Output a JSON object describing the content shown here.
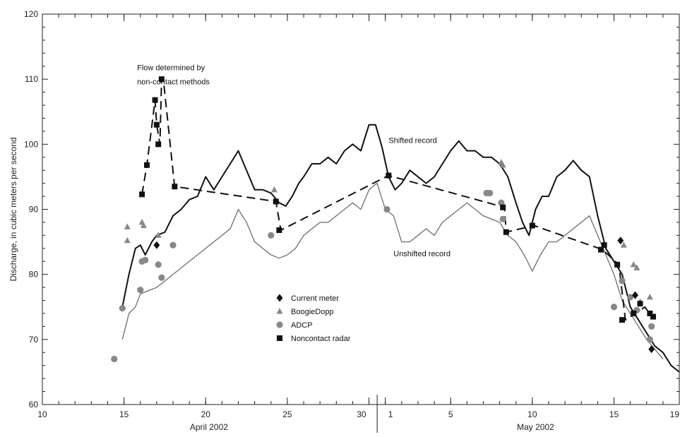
{
  "chart_data": {
    "type": "line",
    "title": "",
    "xlabel": "",
    "ylabel": "Discharge, in cubic meters per second",
    "ylim": [
      60,
      120
    ],
    "y_ticks": [
      60,
      70,
      80,
      90,
      100,
      110,
      120
    ],
    "x_range_days": [
      "2002-04-10",
      "2002-05-19"
    ],
    "x_tick_labels": [
      "10",
      "15",
      "20",
      "25",
      "30",
      "1",
      "5",
      "10",
      "15",
      "19"
    ],
    "x_month_labels": [
      "April 2002",
      "May 2002"
    ],
    "grid": false,
    "legend_position": "center-left",
    "colors": {
      "shifted": "#111111",
      "unshifted": "#777777",
      "current_meter": "#111111",
      "boogiedopp": "#888888",
      "adcp": "#888888",
      "radar": "#111111"
    },
    "annotations": [
      {
        "text": "Flow determined by",
        "x": "2002-04-15.8",
        "y": 111.4
      },
      {
        "text": "non-contact methods",
        "x": "2002-04-15.8",
        "y": 109.2
      },
      {
        "text": "Shifted record",
        "x": "2002-05-01.2",
        "y": 100.2
      },
      {
        "text": "Unshifted record",
        "x": "2002-05-01.5",
        "y": 82.8
      }
    ],
    "series": [
      {
        "name": "Shifted record",
        "style": "solid",
        "x": [
          "2002-04-14.9",
          "2002-04-15.3",
          "2002-04-15.7",
          "2002-04-16.0",
          "2002-04-16.3",
          "2002-04-16.7",
          "2002-04-17.0",
          "2002-04-17.5",
          "2002-04-18.0",
          "2002-04-18.5",
          "2002-04-19.0",
          "2002-04-19.5",
          "2002-04-20.0",
          "2002-04-20.5",
          "2002-04-21.0",
          "2002-04-21.5",
          "2002-04-22.0",
          "2002-04-22.5",
          "2002-04-23.0",
          "2002-04-23.5",
          "2002-04-24.0",
          "2002-04-24.5",
          "2002-04-24.9",
          "2002-04-25.3",
          "2002-04-25.7",
          "2002-04-26.0",
          "2002-04-26.5",
          "2002-04-27.0",
          "2002-04-27.5",
          "2002-04-28.0",
          "2002-04-28.5",
          "2002-04-29.0",
          "2002-04-29.5",
          "2002-04-30.0",
          "2002-04-30.4",
          "2002-04-30.8",
          "2002-05-01.2",
          "2002-05-01.6",
          "2002-05-02.0",
          "2002-05-02.5",
          "2002-05-03.0",
          "2002-05-03.5",
          "2002-05-04.0",
          "2002-05-04.5",
          "2002-05-05.0",
          "2002-05-05.5",
          "2002-05-06.0",
          "2002-05-06.5",
          "2002-05-07.0",
          "2002-05-07.5",
          "2002-05-08.0",
          "2002-05-08.5",
          "2002-05-09.0",
          "2002-05-09.4",
          "2002-05-09.8",
          "2002-05-10.2",
          "2002-05-10.6",
          "2002-05-11.0",
          "2002-05-11.5",
          "2002-05-12.0",
          "2002-05-12.5",
          "2002-05-13.0",
          "2002-05-13.5",
          "2002-05-14.0",
          "2002-05-14.5",
          "2002-05-15.0",
          "2002-05-15.5",
          "2002-05-16.0",
          "2002-05-16.5",
          "2002-05-17.0",
          "2002-05-17.5",
          "2002-05-18.0",
          "2002-05-18.5",
          "2002-05-19.0"
        ],
        "values": [
          75,
          80,
          84,
          84.5,
          83,
          85,
          86,
          86.5,
          89,
          90,
          91.5,
          92,
          95,
          93,
          95,
          97,
          99,
          96,
          93,
          93,
          92.5,
          91,
          90.5,
          92,
          94,
          95,
          97,
          97,
          98,
          97,
          99,
          100,
          99,
          103,
          103,
          99.5,
          95,
          93,
          94,
          96,
          95,
          94,
          95,
          97,
          99,
          100.5,
          99,
          99,
          98,
          98,
          97,
          95,
          91,
          88,
          86,
          90,
          92,
          92,
          95,
          96,
          97.5,
          96,
          95,
          89,
          84,
          82,
          80,
          75,
          73,
          71,
          69,
          68,
          66,
          65
        ]
      },
      {
        "name": "Unshifted record",
        "style": "solid",
        "x": [
          "2002-04-14.9",
          "2002-04-15.3",
          "2002-04-15.7",
          "2002-04-16.0",
          "2002-04-16.5",
          "2002-04-17.0",
          "2002-04-17.5",
          "2002-04-18.0",
          "2002-04-18.5",
          "2002-04-19.0",
          "2002-04-19.5",
          "2002-04-20.0",
          "2002-04-20.5",
          "2002-04-21.0",
          "2002-04-21.5",
          "2002-04-22.0",
          "2002-04-22.5",
          "2002-04-23.0",
          "2002-04-23.5",
          "2002-04-24.0",
          "2002-04-24.5",
          "2002-04-25.0",
          "2002-04-25.5",
          "2002-04-26.0",
          "2002-04-26.5",
          "2002-04-27.0",
          "2002-04-27.5",
          "2002-04-28.0",
          "2002-04-28.5",
          "2002-04-29.0",
          "2002-04-29.5",
          "2002-04-30.0",
          "2002-04-30.5",
          "2002-05-01.0",
          "2002-05-01.5",
          "2002-05-02.0",
          "2002-05-02.5",
          "2002-05-03.0",
          "2002-05-03.5",
          "2002-05-04.0",
          "2002-05-04.5",
          "2002-05-05.0",
          "2002-05-05.5",
          "2002-05-06.0",
          "2002-05-06.5",
          "2002-05-07.0",
          "2002-05-07.5",
          "2002-05-08.0",
          "2002-05-08.5",
          "2002-05-09.0",
          "2002-05-09.5",
          "2002-05-10.0",
          "2002-05-10.5",
          "2002-05-11.0",
          "2002-05-11.5",
          "2002-05-12.0",
          "2002-05-12.5",
          "2002-05-13.0",
          "2002-05-13.5",
          "2002-05-14.0",
          "2002-05-14.5",
          "2002-05-15.0",
          "2002-05-15.5",
          "2002-05-16.0",
          "2002-05-16.5",
          "2002-05-17.0",
          "2002-05-17.5",
          "2002-05-18.0"
        ],
        "values": [
          70,
          74,
          75,
          77,
          77.5,
          78,
          79,
          80,
          81,
          82,
          83,
          84,
          85,
          86,
          87,
          90,
          88,
          85,
          84,
          83,
          82.5,
          83,
          84,
          86,
          87,
          88,
          88,
          89,
          90,
          91,
          90,
          93,
          94,
          90,
          89,
          85,
          85,
          86,
          87,
          86,
          88,
          89,
          90,
          91,
          90,
          89,
          88.5,
          88,
          86,
          85,
          83,
          80.5,
          83,
          85,
          85,
          86,
          87,
          88,
          89,
          86,
          83,
          80,
          76,
          74,
          72,
          70,
          68.5,
          67
        ]
      },
      {
        "name": "",
        "style": "dashed",
        "x": [
          "2002-04-16.1",
          "2002-04-16.4",
          "2002-04-16.9",
          "2002-04-17.0",
          "2002-04-17.2",
          "2002-04-17.3",
          "2002-04-17.4",
          "2002-04-18.1",
          "2002-04-24.3",
          "2002-04-24.6",
          "2002-05-01.2",
          "2002-05-08.3",
          "2002-05-08.4",
          "2002-05-10.1",
          "2002-05-14.3",
          "2002-05-15.3",
          "2002-05-15.7",
          "2002-05-16.3",
          "2002-05-16.9",
          "2002-05-17.3"
        ],
        "values": [
          92.3,
          96.8,
          106.8,
          103,
          100,
          110,
          110.2,
          93.5,
          91.2,
          86.8,
          95.2,
          90.3,
          86.5,
          87.5,
          83.8,
          81.5,
          73,
          74,
          75,
          73.5
        ]
      }
    ],
    "markers": [
      {
        "name": "Current meter",
        "shape": "diamond",
        "points": [
          {
            "x": "2002-05-17.3",
            "y": 68.5
          },
          {
            "x": "2002-05-15.4",
            "y": 85.2
          },
          {
            "x": "2002-05-16.3",
            "y": 76.8
          },
          {
            "x": "2002-04-17.0",
            "y": 84.5
          }
        ]
      },
      {
        "name": "BoogieDopp",
        "shape": "triangle",
        "points": [
          {
            "x": "2002-04-15.2",
            "y": 87.3
          },
          {
            "x": "2002-04-15.2",
            "y": 85.2
          },
          {
            "x": "2002-04-16.1",
            "y": 88
          },
          {
            "x": "2002-04-16.2",
            "y": 87.5
          },
          {
            "x": "2002-04-17.1",
            "y": 86
          },
          {
            "x": "2002-04-24.2",
            "y": 93
          },
          {
            "x": "2002-05-08.1",
            "y": 97.2
          },
          {
            "x": "2002-05-08.2",
            "y": 96.8
          },
          {
            "x": "2002-05-15.6",
            "y": 84.5
          },
          {
            "x": "2002-05-16.2",
            "y": 81.5
          },
          {
            "x": "2002-05-16.4",
            "y": 81
          },
          {
            "x": "2002-05-17.2",
            "y": 76.5
          },
          {
            "x": "2002-05-16.6",
            "y": 75.8
          }
        ]
      },
      {
        "name": "ADCP",
        "shape": "circle",
        "points": [
          {
            "x": "2002-04-14.4",
            "y": 67
          },
          {
            "x": "2002-04-14.9",
            "y": 74.8
          },
          {
            "x": "2002-04-16.0",
            "y": 77.6
          },
          {
            "x": "2002-04-16.1",
            "y": 82
          },
          {
            "x": "2002-04-16.3",
            "y": 82.2
          },
          {
            "x": "2002-04-17.1",
            "y": 81.5
          },
          {
            "x": "2002-04-17.3",
            "y": 79.5
          },
          {
            "x": "2002-04-18.0",
            "y": 84.5
          },
          {
            "x": "2002-04-24.0",
            "y": 86
          },
          {
            "x": "2002-05-01.1",
            "y": 90
          },
          {
            "x": "2002-05-07.2",
            "y": 92.5
          },
          {
            "x": "2002-05-07.4",
            "y": 92.5
          },
          {
            "x": "2002-05-08.1",
            "y": 91
          },
          {
            "x": "2002-05-08.2",
            "y": 88.5
          },
          {
            "x": "2002-05-15.0",
            "y": 75
          },
          {
            "x": "2002-05-15.5",
            "y": 79
          },
          {
            "x": "2002-05-16.0",
            "y": 76.5
          },
          {
            "x": "2002-05-16.4",
            "y": 74.5
          },
          {
            "x": "2002-05-17.2",
            "y": 70
          },
          {
            "x": "2002-05-17.3",
            "y": 72
          }
        ]
      },
      {
        "name": "Noncontact radar",
        "shape": "square",
        "points": [
          {
            "x": "2002-04-16.1",
            "y": 92.3
          },
          {
            "x": "2002-04-16.4",
            "y": 96.8
          },
          {
            "x": "2002-04-16.9",
            "y": 106.8
          },
          {
            "x": "2002-04-17.0",
            "y": 103
          },
          {
            "x": "2002-04-17.1",
            "y": 100
          },
          {
            "x": "2002-04-17.3",
            "y": 110
          },
          {
            "x": "2002-04-18.1",
            "y": 93.5
          },
          {
            "x": "2002-04-24.3",
            "y": 91.2
          },
          {
            "x": "2002-04-24.5",
            "y": 86.8
          },
          {
            "x": "2002-05-01.2",
            "y": 95.2
          },
          {
            "x": "2002-05-08.2",
            "y": 90.3
          },
          {
            "x": "2002-05-08.4",
            "y": 86.5
          },
          {
            "x": "2002-05-10.0",
            "y": 87.5
          },
          {
            "x": "2002-05-14.2",
            "y": 83.8
          },
          {
            "x": "2002-05-14.4",
            "y": 84.5
          },
          {
            "x": "2002-05-15.2",
            "y": 81.5
          },
          {
            "x": "2002-05-15.5",
            "y": 73
          },
          {
            "x": "2002-05-16.2",
            "y": 74
          },
          {
            "x": "2002-05-16.6",
            "y": 75.5
          },
          {
            "x": "2002-05-17.2",
            "y": 74
          },
          {
            "x": "2002-05-17.4",
            "y": 73.5
          }
        ]
      }
    ],
    "legend": [
      "Current meter",
      "BoogieDopp",
      "ADCP",
      "Noncontact radar"
    ]
  }
}
